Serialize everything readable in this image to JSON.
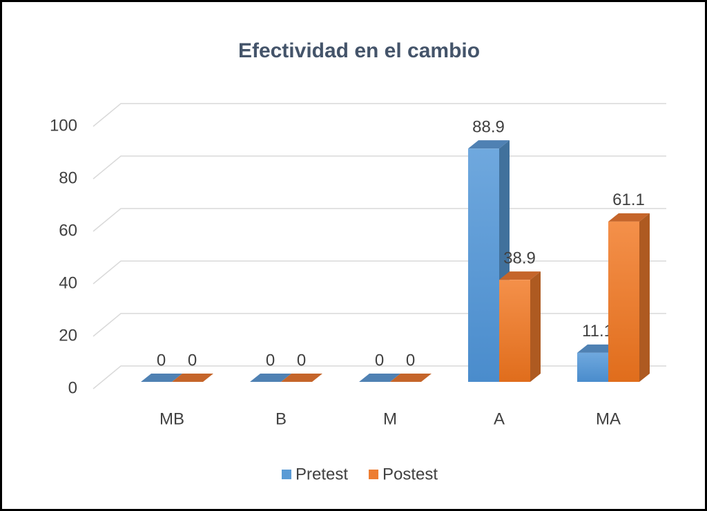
{
  "chart_data": {
    "type": "bar3d",
    "title": "Efectividad en el cambio",
    "categories": [
      "MB",
      "B",
      "M",
      "A",
      "MA"
    ],
    "series": [
      {
        "name": "Pretest",
        "color": "#5b9bd5",
        "values": [
          0,
          0,
          0,
          88.9,
          11.1
        ]
      },
      {
        "name": "Postest",
        "color": "#ed7d31",
        "values": [
          0,
          0,
          0,
          38.9,
          61.1
        ]
      }
    ],
    "ylim": [
      0,
      100
    ],
    "yticks": [
      0,
      20,
      40,
      60,
      80,
      100
    ],
    "grid": true,
    "legend": "bottom"
  }
}
